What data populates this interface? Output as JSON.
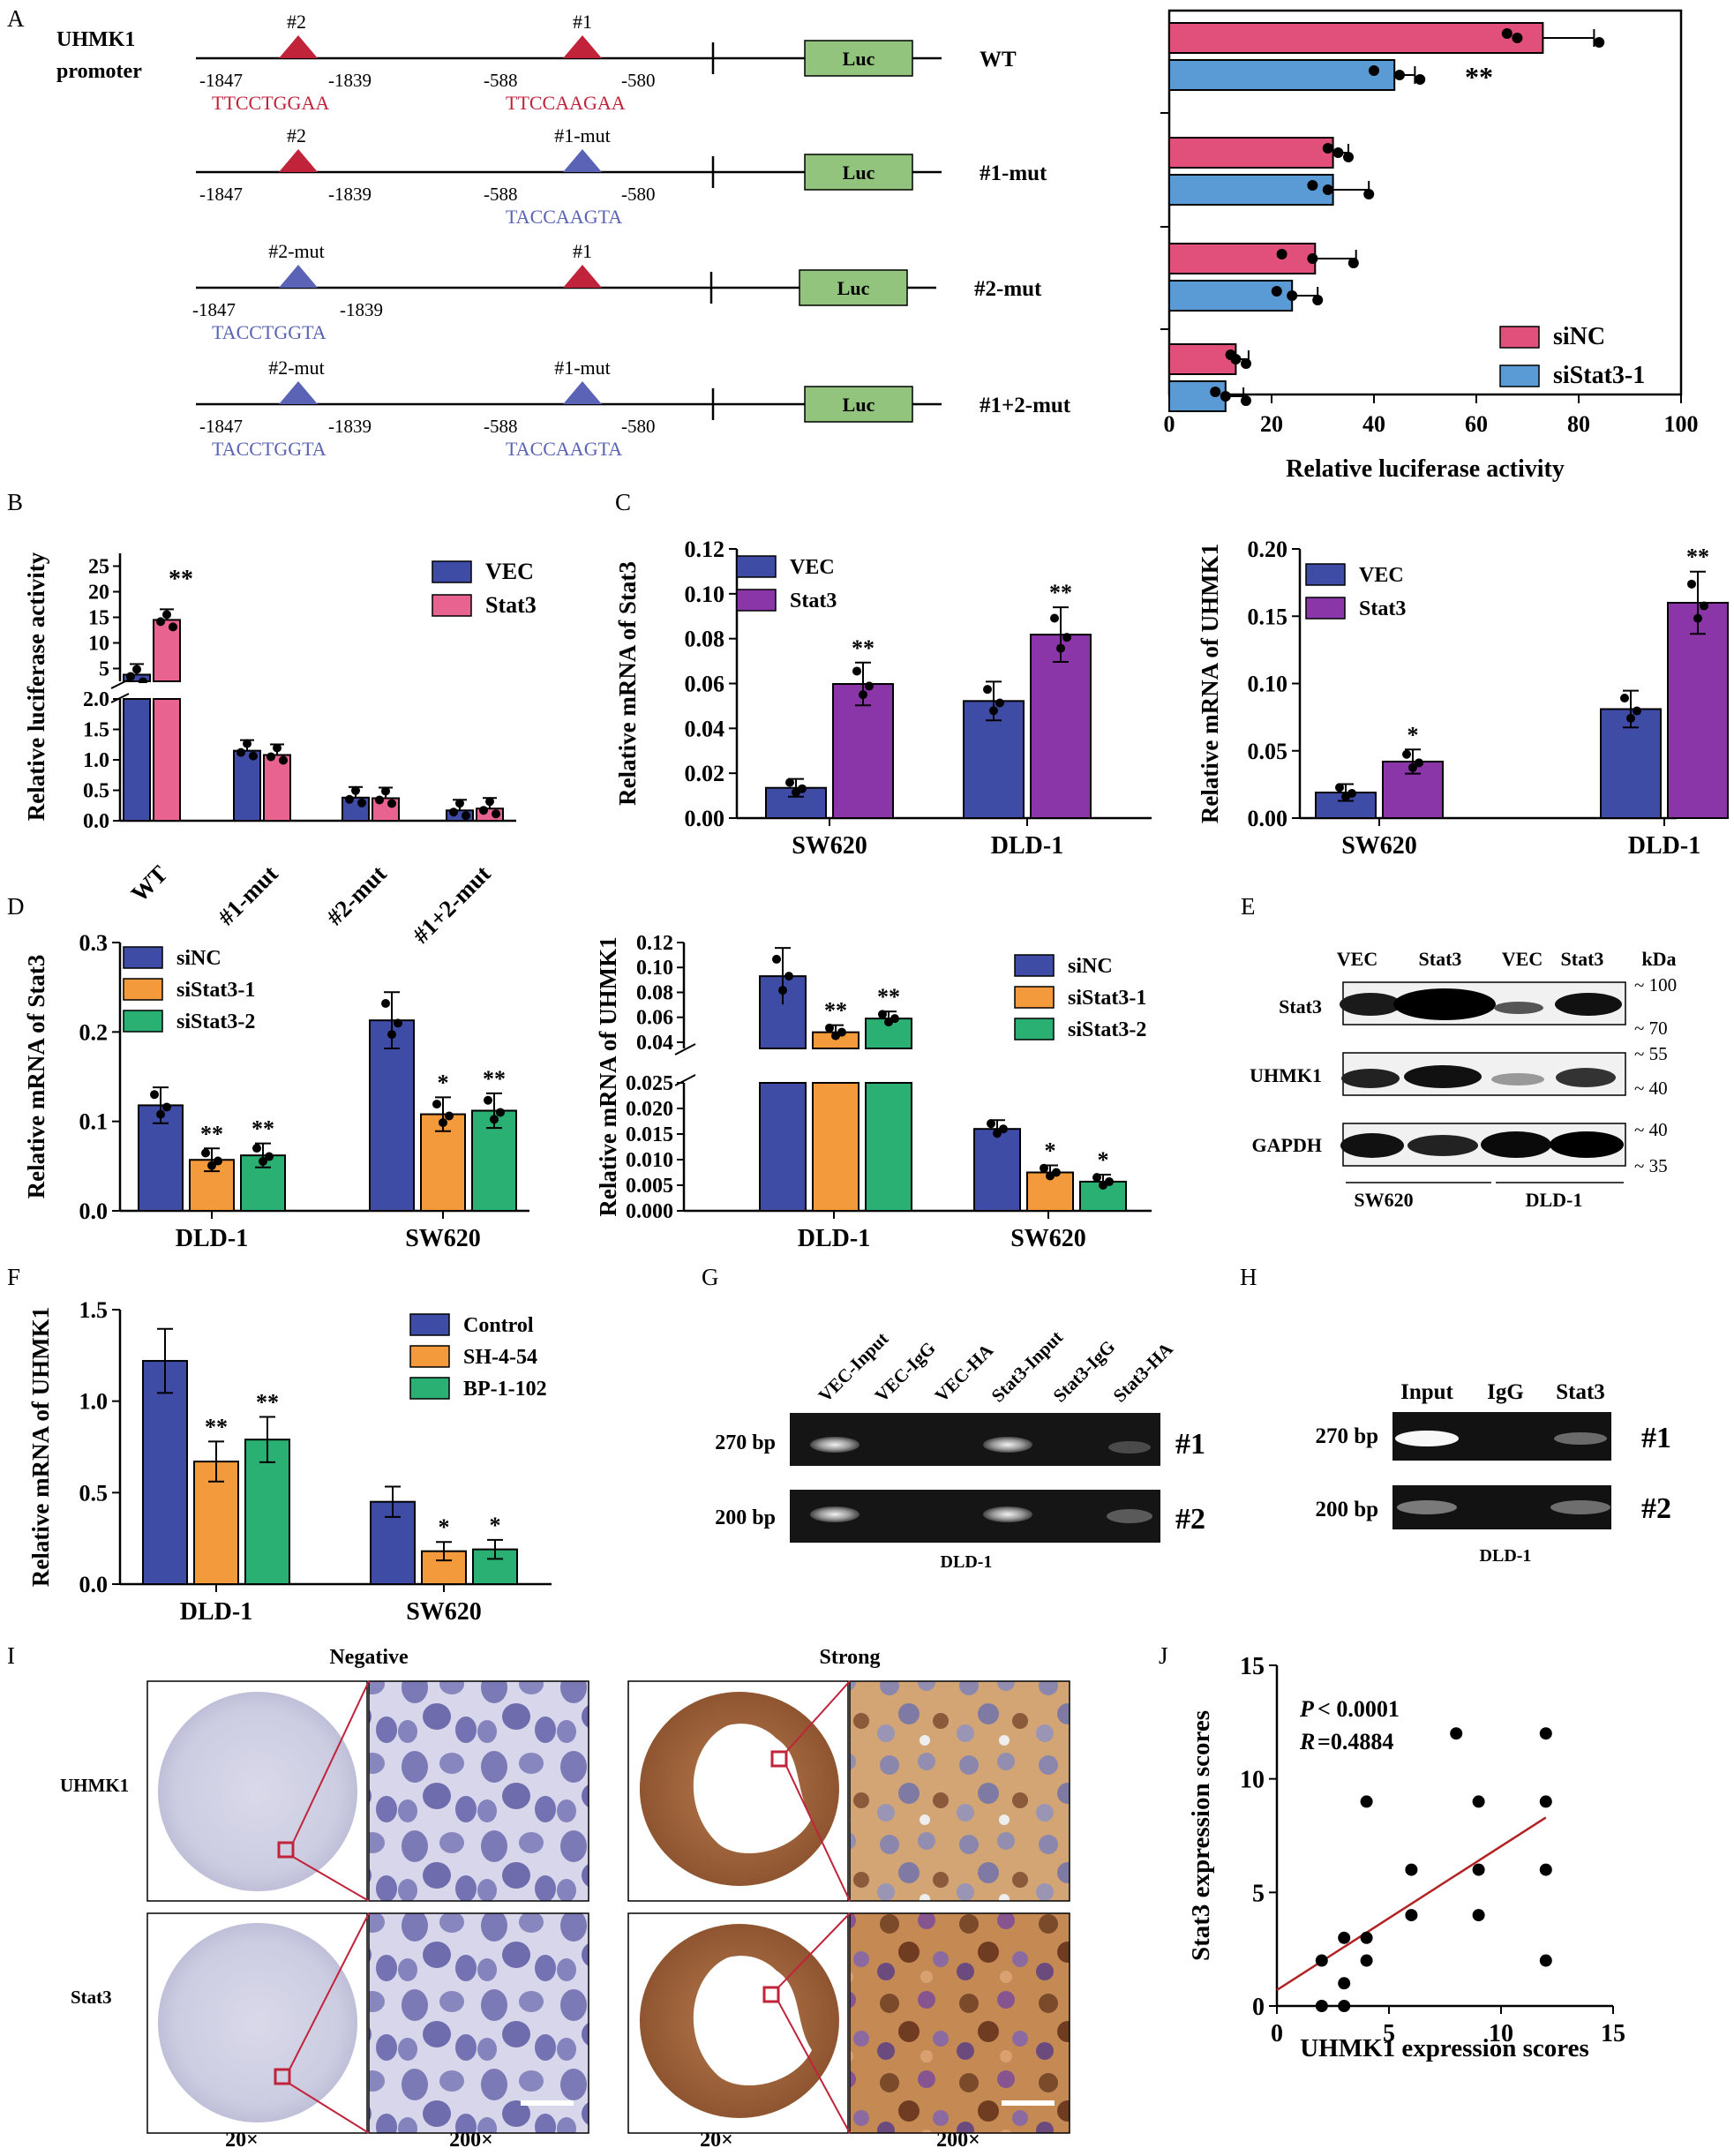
{
  "colors": {
    "pink": "#e0507a",
    "blue": "#5b9bd5",
    "navy": "#3e4ca6",
    "hotpink": "#e8638f",
    "purple": "#8a35a8",
    "orange": "#f39a3c",
    "green": "#2bb073",
    "red": "#c0233a",
    "mutblue": "#5a63b5",
    "luc": "#93c47d"
  },
  "panel_labels": [
    "A",
    "B",
    "C",
    "D",
    "E",
    "F",
    "G",
    "H",
    "I",
    "J"
  ],
  "panelA": {
    "promoter_label": [
      "UHMK1",
      "promoter"
    ],
    "constructs": [
      {
        "name": "WT",
        "site2": "#2",
        "site1": "#1",
        "seq2": "TTCCTGGAA",
        "seq1": "TTCCAAGAA",
        "mut2": false,
        "mut1": false,
        "pos2a": "-1847",
        "pos2b": "-1839",
        "pos1a": "-588",
        "pos1b": "-580"
      },
      {
        "name": "#1-mut",
        "site2": "#2",
        "site1": "#1-mut",
        "seq2": "",
        "seq1": "TACCAAGTA",
        "mut2": false,
        "mut1": true,
        "pos2a": "-1847",
        "pos2b": "-1839",
        "pos1a": "-588",
        "pos1b": "-580"
      },
      {
        "name": "#2-mut",
        "site2": "#2-mut",
        "site1": "#1",
        "seq2": "TACCTGGTA",
        "seq1": "",
        "mut2": true,
        "mut1": false,
        "pos2a": "-1847",
        "pos2b": "-1839",
        "pos1a": "",
        "pos1b": ""
      },
      {
        "name": "#1+2-mut",
        "site2": "#2-mut",
        "site1": "#1-mut",
        "seq2": "TACCTGGTA",
        "seq1": "TACCAAGTA",
        "mut2": true,
        "mut1": true,
        "pos2a": "-1847",
        "pos2b": "-1839",
        "pos1a": "-588",
        "pos1b": "-580"
      }
    ],
    "luc_label": "Luc",
    "star_label": "**"
  },
  "chart_data": [
    {
      "id": "A",
      "type": "bar",
      "orientation": "horizontal",
      "categories": [
        "WT",
        "#1-mut",
        "#2-mut",
        "#1+2-mut"
      ],
      "series": [
        {
          "name": "siNC",
          "values": [
            73,
            32,
            28.5,
            13
          ]
        },
        {
          "name": "siStat3-1",
          "values": [
            44,
            32,
            24,
            11
          ]
        }
      ],
      "errors": [
        [
          10,
          3,
          8,
          2.5
        ],
        [
          4,
          7,
          5,
          3.5
        ]
      ],
      "points": [
        [
          [
            66,
            68,
            84
          ],
          [
            31,
            33,
            35
          ],
          [
            22,
            28,
            36
          ],
          [
            12,
            13,
            15
          ]
        ],
        [
          [
            40,
            45,
            49
          ],
          [
            28,
            31,
            39
          ],
          [
            21,
            24,
            29
          ],
          [
            9,
            11,
            15
          ]
        ]
      ],
      "xlabel": "Relative luciferase activity",
      "xticks": [
        "0",
        "20",
        "40",
        "60",
        "80",
        "100"
      ],
      "xlim": [
        0,
        100
      ],
      "annotations": [
        "**"
      ],
      "legend": "bottom-right"
    },
    {
      "id": "B",
      "type": "bar",
      "categories": [
        "WT",
        "#1-mut",
        "#2-mut",
        "#1+2-mut"
      ],
      "series": [
        {
          "name": "VEC",
          "values": [
            3.8,
            1.15,
            0.38,
            0.17
          ]
        },
        {
          "name": "Stat3",
          "values": [
            14.5,
            1.08,
            0.37,
            0.2
          ]
        }
      ],
      "ylabel": "Relative luciferase activity",
      "yticks_upper": [
        "5",
        "10",
        "15",
        "20",
        "25"
      ],
      "yticks_lower": [
        "0.0",
        "0.5",
        "1.0",
        "1.5",
        "2.0"
      ],
      "annotations": [
        "**"
      ],
      "legend": "top-right"
    },
    {
      "id": "C1",
      "type": "bar",
      "categories": [
        "SW620",
        "DLD-1"
      ],
      "series": [
        {
          "name": "VEC",
          "values": [
            0.0135,
            0.0522
          ]
        },
        {
          "name": "Stat3",
          "values": [
            0.0598,
            0.0818
          ]
        }
      ],
      "ylabel": "Relative mRNA of Stat3",
      "yticks": [
        "0.00",
        "0.02",
        "0.04",
        "0.06",
        "0.08",
        "0.10",
        "0.12"
      ],
      "ylim": [
        0,
        0.12
      ],
      "annotations": [
        "**",
        "**"
      ],
      "legend": "top-left"
    },
    {
      "id": "C2",
      "type": "bar",
      "categories": [
        "SW620",
        "DLD-1"
      ],
      "series": [
        {
          "name": "VEC",
          "values": [
            0.019,
            0.081
          ]
        },
        {
          "name": "Stat3",
          "values": [
            0.042,
            0.16
          ]
        }
      ],
      "ylabel": "Relative mRNA of UHMK1",
      "yticks": [
        "0.00",
        "0.05",
        "0.10",
        "0.15",
        "0.20"
      ],
      "ylim": [
        0,
        0.2
      ],
      "annotations": [
        "*",
        "**"
      ],
      "legend": "top-left"
    },
    {
      "id": "D1",
      "type": "bar",
      "categories": [
        "DLD-1",
        "SW620"
      ],
      "series": [
        {
          "name": "siNC",
          "values": [
            0.118,
            0.213
          ]
        },
        {
          "name": "siStat3-1",
          "values": [
            0.057,
            0.108
          ]
        },
        {
          "name": "siStat3-2",
          "values": [
            0.062,
            0.112
          ]
        }
      ],
      "ylabel": "Relative mRNA of Stat3",
      "yticks": [
        "0.0",
        "0.1",
        "0.2",
        "0.3"
      ],
      "ylim": [
        0,
        0.3
      ],
      "annotations": [
        "**",
        "**",
        "*",
        "**"
      ],
      "legend": "top-left"
    },
    {
      "id": "D2",
      "type": "bar",
      "categories": [
        "DLD-1",
        "SW620"
      ],
      "series": [
        {
          "name": "siNC",
          "values": [
            0.093,
            0.016
          ]
        },
        {
          "name": "siStat3-1",
          "values": [
            0.048,
            0.0075
          ]
        },
        {
          "name": "siStat3-2",
          "values": [
            0.059,
            0.0057
          ]
        }
      ],
      "ylabel": "Relative mRNA of UHMK1",
      "yticks_upper": [
        "0.04",
        "0.06",
        "0.08",
        "0.10",
        "0.12"
      ],
      "yticks_lower": [
        "0.000",
        "0.005",
        "0.010",
        "0.015",
        "0.020",
        "0.025"
      ],
      "annotations": [
        "**",
        "**",
        "*",
        "*"
      ],
      "legend": "top-right"
    },
    {
      "id": "F",
      "type": "bar",
      "categories": [
        "DLD-1",
        "SW620"
      ],
      "series": [
        {
          "name": "Control",
          "values": [
            1.22,
            0.45
          ]
        },
        {
          "name": "SH-4-54",
          "values": [
            0.67,
            0.18
          ]
        },
        {
          "name": "BP-1-102",
          "values": [
            0.79,
            0.19
          ]
        }
      ],
      "ylabel": "Relative mRNA of UHMK1",
      "yticks": [
        "0.0",
        "0.5",
        "1.0",
        "1.5"
      ],
      "ylim": [
        0,
        1.5
      ],
      "annotations": [
        "**",
        "**",
        "*",
        "*"
      ],
      "legend": "top-right"
    },
    {
      "id": "J",
      "type": "scatter",
      "x": [
        2,
        2,
        3,
        3,
        3,
        4,
        4,
        4,
        6,
        6,
        8,
        9,
        9,
        9,
        12,
        12,
        12,
        12
      ],
      "y": [
        0,
        2,
        0,
        1,
        3,
        2,
        3,
        9,
        4,
        6,
        12,
        4,
        6,
        9,
        2,
        6,
        9,
        12
      ],
      "fit": [
        [
          0,
          0.7
        ],
        [
          12,
          8.3
        ]
      ],
      "xlabel": "UHMK1 expression scores",
      "ylabel": "Stat3 expression scores",
      "xticks": [
        "0",
        "5",
        "10",
        "15"
      ],
      "yticks": [
        "0",
        "5",
        "10",
        "15"
      ],
      "xlim": [
        0,
        15
      ],
      "ylim": [
        0,
        15
      ],
      "annotation_p": "< 0.0001",
      "annotation_r": "=0.4884"
    }
  ],
  "panelE": {
    "lanes": [
      "VEC",
      "Stat3",
      "VEC",
      "Stat3"
    ],
    "kda": "kDa",
    "rows": [
      "Stat3",
      "UHMK1",
      "GAPDH"
    ],
    "markers": [
      [
        "~ 100",
        "~ 70"
      ],
      [
        "~ 55",
        "~ 40"
      ],
      [
        "~ 40",
        "~ 35"
      ]
    ],
    "groups": [
      "SW620",
      "DLD-1"
    ]
  },
  "panelG": {
    "lanes": [
      "VEC-Input",
      "VEC-IgG",
      "VEC-HA",
      "Stat3-Input",
      "Stat3-IgG",
      "Stat3-HA"
    ],
    "bp": [
      "270 bp",
      "200 bp"
    ],
    "sites": [
      "#1",
      "#2"
    ],
    "cell": "DLD-1"
  },
  "panelH": {
    "lanes": [
      "Input",
      "IgG",
      "Stat3"
    ],
    "bp": [
      "270 bp",
      "200 bp"
    ],
    "sites": [
      "#1",
      "#2"
    ],
    "cell": "DLD-1"
  },
  "panelI": {
    "headers": [
      "Negative",
      "Strong"
    ],
    "rows": [
      "UHMK1",
      "Stat3"
    ],
    "mags": [
      "20×",
      "200×",
      "20×",
      "200×"
    ]
  }
}
